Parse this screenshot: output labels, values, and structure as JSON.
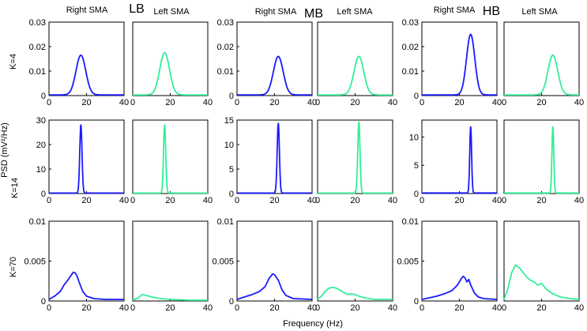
{
  "figure": {
    "xlabel": "Frequency (Hz)",
    "ylabel": "PSD (mV²/Hz)",
    "columns": [
      {
        "band": "LB",
        "left_title": "Right SMA",
        "right_title": "Left SMA"
      },
      {
        "band": "MB",
        "left_title": "Right SMA",
        "right_title": "Left SMA"
      },
      {
        "band": "HB",
        "left_title": "Right SMA",
        "right_title": "Left SMA"
      }
    ],
    "rows": [
      {
        "label": "K=4"
      },
      {
        "label": "K=14"
      },
      {
        "label": "K=70"
      }
    ],
    "colors": {
      "right_sma": "#1a1aff",
      "left_sma": "#33ee99"
    }
  },
  "chart_data": [
    {
      "type": "line",
      "title": "Right SMA",
      "band": "LB",
      "k": "K=4",
      "series": [
        {
          "name": "Right SMA",
          "peak_x": 17,
          "peak_y": 0.0165,
          "width": 2.6,
          "baseline": 0.0003
        }
      ],
      "xlim": [
        0,
        40
      ],
      "ylim": [
        0,
        0.03
      ],
      "xticks": [
        0,
        20,
        40
      ],
      "yticks": [
        "0",
        "0.01",
        "0.02",
        "0.03"
      ]
    },
    {
      "type": "line",
      "title": "Left SMA",
      "band": "LB",
      "k": "K=4",
      "series": [
        {
          "name": "Left SMA",
          "peak_x": 17,
          "peak_y": 0.0175,
          "width": 2.6,
          "baseline": 0.0003
        }
      ],
      "xlim": [
        0,
        40
      ],
      "ylim": [
        0,
        0.03
      ],
      "xticks": [
        0,
        20,
        40
      ],
      "yticks": []
    },
    {
      "type": "line",
      "title": "Right SMA",
      "band": "MB",
      "k": "K=4",
      "series": [
        {
          "name": "Right SMA",
          "peak_x": 22,
          "peak_y": 0.016,
          "width": 2.6,
          "baseline": 0.0003
        }
      ],
      "xlim": [
        0,
        40
      ],
      "ylim": [
        0,
        0.03
      ],
      "xticks": [
        0,
        20,
        40
      ],
      "yticks": [
        "0",
        "0.01",
        "0.02",
        "0.03"
      ]
    },
    {
      "type": "line",
      "title": "Left SMA",
      "band": "MB",
      "k": "K=4",
      "series": [
        {
          "name": "Left SMA",
          "peak_x": 22,
          "peak_y": 0.016,
          "width": 2.6,
          "baseline": 0.0003
        }
      ],
      "xlim": [
        0,
        40
      ],
      "ylim": [
        0,
        0.03
      ],
      "xticks": [
        0,
        20,
        40
      ],
      "yticks": []
    },
    {
      "type": "line",
      "title": "Right SMA",
      "band": "HB",
      "k": "K=4",
      "series": [
        {
          "name": "Right SMA",
          "peak_x": 26,
          "peak_y": 0.025,
          "width": 2.2,
          "baseline": 0.0003
        }
      ],
      "xlim": [
        0,
        40
      ],
      "ylim": [
        0,
        0.03
      ],
      "xticks": [
        0,
        20,
        40
      ],
      "yticks": [
        "0",
        "0.01",
        "0.02",
        "0.03"
      ]
    },
    {
      "type": "line",
      "title": "Left SMA",
      "band": "HB",
      "k": "K=4",
      "series": [
        {
          "name": "Left SMA",
          "peak_x": 26,
          "peak_y": 0.0165,
          "width": 2.6,
          "baseline": 0.0003
        }
      ],
      "xlim": [
        0,
        40
      ],
      "ylim": [
        0,
        0.03
      ],
      "xticks": [
        0,
        20,
        40
      ],
      "yticks": []
    },
    {
      "type": "line",
      "band": "LB",
      "k": "K=14",
      "series": [
        {
          "name": "Right SMA",
          "peak_x": 17,
          "peak_y": 28,
          "width": 0.6,
          "baseline": 0.2
        }
      ],
      "xlim": [
        0,
        40
      ],
      "ylim": [
        0,
        30
      ],
      "xticks": [
        0,
        20,
        40
      ],
      "yticks": [
        "0",
        "10",
        "20",
        "30"
      ]
    },
    {
      "type": "line",
      "band": "LB",
      "k": "K=14",
      "series": [
        {
          "name": "Left SMA",
          "peak_x": 17,
          "peak_y": 28,
          "width": 0.6,
          "baseline": 0.2
        }
      ],
      "xlim": [
        0,
        40
      ],
      "ylim": [
        0,
        30
      ],
      "xticks": [
        0,
        20,
        40
      ],
      "yticks": []
    },
    {
      "type": "line",
      "band": "MB",
      "k": "K=14",
      "series": [
        {
          "name": "Right SMA",
          "peak_x": 22,
          "peak_y": 14.3,
          "width": 0.6,
          "baseline": 0.1
        }
      ],
      "xlim": [
        0,
        40
      ],
      "ylim": [
        0,
        15
      ],
      "xticks": [
        0,
        20,
        40
      ],
      "yticks": [
        "0",
        "5",
        "10",
        "15"
      ]
    },
    {
      "type": "line",
      "band": "MB",
      "k": "K=14",
      "series": [
        {
          "name": "Left SMA",
          "peak_x": 22,
          "peak_y": 14.6,
          "width": 0.6,
          "baseline": 0.1
        }
      ],
      "xlim": [
        0,
        40
      ],
      "ylim": [
        0,
        15
      ],
      "xticks": [
        0,
        20,
        40
      ],
      "yticks": []
    },
    {
      "type": "line",
      "band": "HB",
      "k": "K=14",
      "series": [
        {
          "name": "Right SMA",
          "peak_x": 26,
          "peak_y": 11.8,
          "width": 0.5,
          "baseline": 0.1
        }
      ],
      "xlim": [
        0,
        40
      ],
      "ylim": [
        0,
        13
      ],
      "xticks": [
        0,
        20,
        40
      ],
      "yticks": [
        "0",
        "5",
        "10"
      ]
    },
    {
      "type": "line",
      "band": "HB",
      "k": "K=14",
      "series": [
        {
          "name": "Left SMA",
          "peak_x": 26,
          "peak_y": 11.8,
          "width": 0.5,
          "baseline": 0.1
        }
      ],
      "xlim": [
        0,
        40
      ],
      "ylim": [
        0,
        13
      ],
      "xticks": [
        0,
        20,
        40
      ],
      "yticks": []
    },
    {
      "type": "line",
      "band": "LB",
      "k": "K=70",
      "series": [
        {
          "name": "Right SMA",
          "points": [
            [
              0,
              0.0002
            ],
            [
              3,
              0.0006
            ],
            [
              6,
              0.0012
            ],
            [
              8,
              0.002
            ],
            [
              10,
              0.0026
            ],
            [
              12,
              0.0033
            ],
            [
              13,
              0.0036
            ],
            [
              14,
              0.0035
            ],
            [
              15,
              0.0031
            ],
            [
              16,
              0.0024
            ],
            [
              18,
              0.0012
            ],
            [
              20,
              0.0006
            ],
            [
              24,
              0.0003
            ],
            [
              30,
              0.0002
            ],
            [
              40,
              0.0002
            ]
          ]
        }
      ],
      "xlim": [
        0,
        40
      ],
      "ylim": [
        0,
        0.01
      ],
      "xticks": [
        0,
        20,
        40
      ],
      "yticks": [
        "0",
        "0.005",
        "0.01"
      ]
    },
    {
      "type": "line",
      "band": "LB",
      "k": "K=70",
      "series": [
        {
          "name": "Left SMA",
          "points": [
            [
              0,
              0.0001
            ],
            [
              3,
              0.0004
            ],
            [
              5,
              0.0008
            ],
            [
              7,
              0.0007
            ],
            [
              10,
              0.0005
            ],
            [
              15,
              0.0003
            ],
            [
              20,
              0.0002
            ],
            [
              30,
              0.0001
            ],
            [
              40,
              0.0001
            ]
          ]
        }
      ],
      "xlim": [
        0,
        40
      ],
      "ylim": [
        0,
        0.01
      ],
      "xticks": [
        0,
        20,
        40
      ],
      "yticks": []
    },
    {
      "type": "line",
      "band": "MB",
      "k": "K=70",
      "series": [
        {
          "name": "Right SMA",
          "points": [
            [
              0,
              0.0002
            ],
            [
              4,
              0.0005
            ],
            [
              8,
              0.0008
            ],
            [
              12,
              0.0012
            ],
            [
              15,
              0.0018
            ],
            [
              17,
              0.0028
            ],
            [
              19,
              0.0034
            ],
            [
              20,
              0.0033
            ],
            [
              22,
              0.0026
            ],
            [
              24,
              0.0014
            ],
            [
              26,
              0.0007
            ],
            [
              30,
              0.0003
            ],
            [
              40,
              0.0002
            ]
          ]
        }
      ],
      "xlim": [
        0,
        40
      ],
      "ylim": [
        0,
        0.01
      ],
      "xticks": [
        0,
        20,
        40
      ],
      "yticks": [
        "0",
        "0.005",
        "0.01"
      ]
    },
    {
      "type": "line",
      "band": "MB",
      "k": "K=70",
      "series": [
        {
          "name": "Left SMA",
          "points": [
            [
              0,
              0.0002
            ],
            [
              2,
              0.0006
            ],
            [
              4,
              0.0012
            ],
            [
              6,
              0.0016
            ],
            [
              8,
              0.0017
            ],
            [
              10,
              0.0016
            ],
            [
              13,
              0.0012
            ],
            [
              16,
              0.0008
            ],
            [
              18,
              0.0009
            ],
            [
              20,
              0.0008
            ],
            [
              22,
              0.0006
            ],
            [
              25,
              0.0004
            ],
            [
              30,
              0.0002
            ],
            [
              40,
              0.0002
            ]
          ]
        }
      ],
      "xlim": [
        0,
        40
      ],
      "ylim": [
        0,
        0.01
      ],
      "xticks": [
        0,
        20,
        40
      ],
      "yticks": []
    },
    {
      "type": "line",
      "band": "HB",
      "k": "K=70",
      "series": [
        {
          "name": "Right SMA",
          "points": [
            [
              0,
              0.0002
            ],
            [
              4,
              0.0004
            ],
            [
              8,
              0.0006
            ],
            [
              12,
              0.0009
            ],
            [
              16,
              0.0013
            ],
            [
              19,
              0.002
            ],
            [
              21,
              0.0028
            ],
            [
              22,
              0.0031
            ],
            [
              23,
              0.0029
            ],
            [
              24,
              0.0024
            ],
            [
              25,
              0.0027
            ],
            [
              26,
              0.002
            ],
            [
              28,
              0.001
            ],
            [
              30,
              0.0005
            ],
            [
              33,
              0.0003
            ],
            [
              40,
              0.0002
            ]
          ]
        }
      ],
      "xlim": [
        0,
        40
      ],
      "ylim": [
        0,
        0.01
      ],
      "xticks": [
        0,
        20,
        40
      ],
      "yticks": [
        "0",
        "0.005",
        "0.01"
      ]
    },
    {
      "type": "line",
      "band": "HB",
      "k": "K=70",
      "series": [
        {
          "name": "Left SMA",
          "points": [
            [
              0,
              0.0002
            ],
            [
              2,
              0.0015
            ],
            [
              4,
              0.0035
            ],
            [
              6,
              0.0045
            ],
            [
              8,
              0.0042
            ],
            [
              10,
              0.0036
            ],
            [
              12,
              0.003
            ],
            [
              14,
              0.0026
            ],
            [
              16,
              0.0024
            ],
            [
              18,
              0.002
            ],
            [
              20,
              0.0022
            ],
            [
              22,
              0.0016
            ],
            [
              24,
              0.0012
            ],
            [
              26,
              0.0009
            ],
            [
              30,
              0.0005
            ],
            [
              35,
              0.0003
            ],
            [
              40,
              0.0002
            ]
          ]
        }
      ],
      "xlim": [
        0,
        40
      ],
      "ylim": [
        0,
        0.01
      ],
      "xticks": [
        0,
        20,
        40
      ],
      "yticks": []
    }
  ]
}
